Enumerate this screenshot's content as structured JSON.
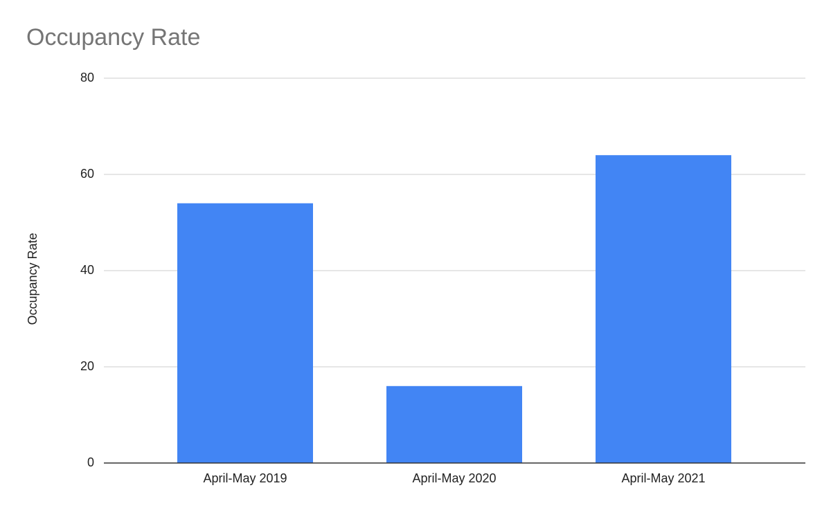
{
  "chart_data": {
    "type": "bar",
    "title": "Occupancy Rate",
    "y_label": "Occupancy Rate",
    "categories": [
      "April-May 2019",
      "April-May 2020",
      "April-May 2021"
    ],
    "values": [
      54,
      16,
      64
    ],
    "color": "#4285f4",
    "ylim": [
      0,
      80
    ],
    "yticks": [
      0,
      20,
      40,
      60,
      80
    ],
    "grid": true
  }
}
